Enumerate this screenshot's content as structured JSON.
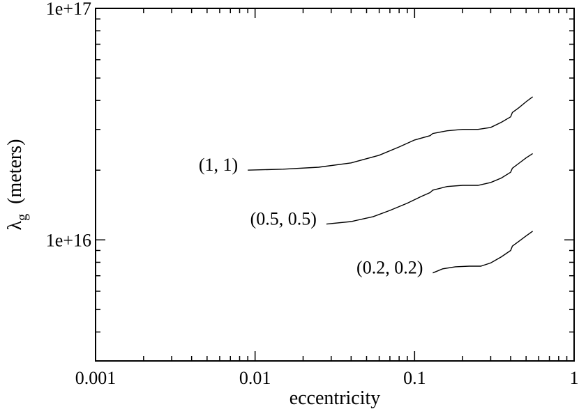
{
  "chart_data": {
    "type": "line",
    "xlabel": "eccentricity",
    "ylabel_main": "λ",
    "ylabel_sub": "g",
    "ylabel_unit": "(meters)",
    "xscale": "log",
    "yscale": "log",
    "xlim": [
      0.001,
      1
    ],
    "ylim": [
      3000000000000000,
      100000000000000000
    ],
    "grid": false,
    "x_ticks": [
      {
        "value": 0.001,
        "label": "0.001"
      },
      {
        "value": 0.01,
        "label": "0.01"
      },
      {
        "value": 0.1,
        "label": "0.1"
      },
      {
        "value": 1,
        "label": "1"
      }
    ],
    "y_ticks": [
      {
        "value": 10000000000000000,
        "label": "1e+16"
      },
      {
        "value": 100000000000000000,
        "label": "1e+17"
      }
    ],
    "series": [
      {
        "name": "(1, 1)",
        "x": [
          0.009,
          0.015,
          0.025,
          0.04,
          0.06,
          0.08,
          0.1,
          0.125,
          0.13,
          0.16,
          0.2,
          0.25,
          0.3,
          0.35,
          0.4,
          0.41,
          0.45,
          0.5,
          0.55
        ],
        "y": [
          2e+16,
          2.02e+16,
          2.06e+16,
          2.15e+16,
          2.32e+16,
          2.52e+16,
          2.7e+16,
          2.82e+16,
          2.88e+16,
          2.96e+16,
          3e+16,
          3e+16,
          3.06e+16,
          3.22e+16,
          3.4e+16,
          3.55e+16,
          3.72e+16,
          3.95e+16,
          4.15e+16
        ]
      },
      {
        "name": "(0.5, 0.5)",
        "x": [
          0.028,
          0.04,
          0.055,
          0.07,
          0.09,
          0.11,
          0.125,
          0.13,
          0.16,
          0.2,
          0.25,
          0.3,
          0.35,
          0.4,
          0.41,
          0.45,
          0.5,
          0.55
        ],
        "y": [
          1.17e+16,
          1.2e+16,
          1.26e+16,
          1.34e+16,
          1.44e+16,
          1.54e+16,
          1.6e+16,
          1.64e+16,
          1.7e+16,
          1.72e+16,
          1.72e+16,
          1.77e+16,
          1.85e+16,
          1.96e+16,
          2.04e+16,
          2.14e+16,
          2.26e+16,
          2.36e+16
        ]
      },
      {
        "name": "(0.2, 0.2)",
        "x": [
          0.13,
          0.15,
          0.18,
          0.22,
          0.26,
          0.3,
          0.35,
          0.4,
          0.41,
          0.45,
          0.5,
          0.55
        ],
        "y": [
          7200000000000000.0,
          7500000000000000.0,
          7650000000000000.0,
          7700000000000000.0,
          7700000000000000.0,
          7950000000000000.0,
          8450000000000000.0,
          9000000000000000.0,
          9400000000000000.0,
          9850000000000000.0,
          1.04e+16,
          1.09e+16
        ]
      }
    ]
  }
}
